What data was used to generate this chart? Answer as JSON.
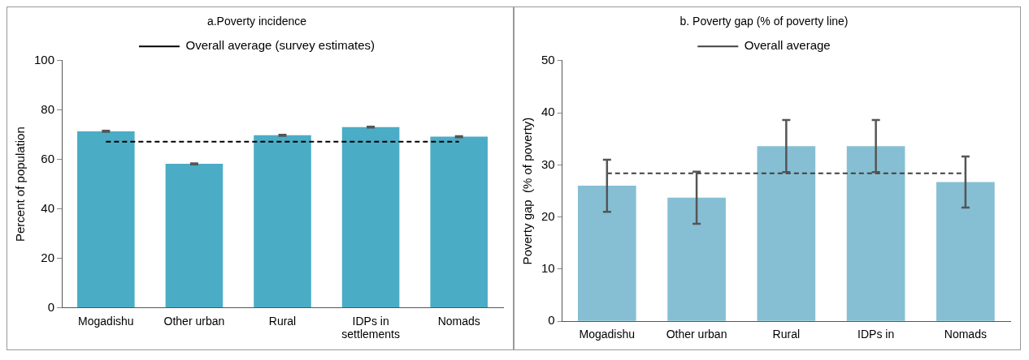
{
  "chart_data": [
    {
      "type": "bar",
      "title": "a.Poverty incidence",
      "ylabel": "Percent of population",
      "categories": [
        "Mogadishu",
        "Other urban",
        "Rural",
        "IDPs in settlements",
        "Nomads"
      ],
      "ylim": [
        0,
        100
      ],
      "yticks": [
        0,
        20,
        40,
        60,
        80,
        100
      ],
      "grid": false,
      "legend": "top",
      "series": [
        {
          "color": "#4bacc6",
          "values": [
            71.4,
            58.2,
            69.8,
            73.1,
            69.2
          ],
          "errors": [
            0.2,
            0.2,
            0.2,
            0.2,
            0.2
          ]
        },
        {
          "type": "line",
          "name": "Overall average (survey estimates)",
          "color": "#000000",
          "line_style": "dashed",
          "marker": "none",
          "values": [
            67.2,
            67.2,
            67.2,
            67.2,
            67.2
          ]
        }
      ]
    },
    {
      "type": "bar",
      "title": "b. Poverty gap (% of poverty line)",
      "ylabel": "Poverty gap  (% of poverty)",
      "categories": [
        "Mogadishu",
        "Other urban",
        "Rural",
        "IDPs in",
        "Nomads"
      ],
      "ylim": [
        0,
        50
      ],
      "yticks": [
        0,
        10,
        20,
        30,
        40,
        50
      ],
      "grid": false,
      "legend": "top",
      "series": [
        {
          "color": "#86bfd4",
          "values": [
            26.0,
            23.7,
            33.6,
            33.6,
            26.7
          ],
          "errors": [
            5,
            5,
            5,
            5,
            4.9
          ]
        },
        {
          "type": "line",
          "name": "Overall average",
          "color": "#404040",
          "line_style": "dashed",
          "marker": "none",
          "values": [
            28.4,
            28.4,
            28.4,
            28.4,
            28.4
          ]
        }
      ]
    }
  ]
}
